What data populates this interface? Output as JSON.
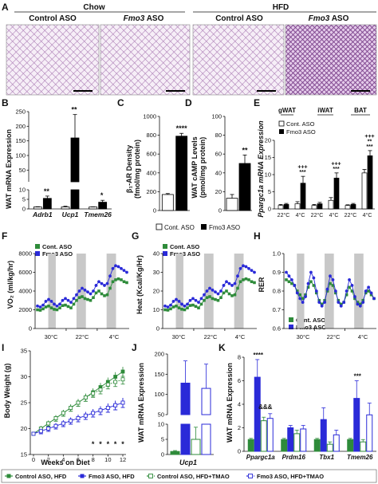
{
  "panels": {
    "A": {
      "letter": "A",
      "diet_groups": [
        "Chow",
        "HFD"
      ],
      "image_labels": [
        {
          "prefix": "Control",
          "suffix": " ASO"
        },
        {
          "prefix": "Fmo3",
          "suffix": " ASO"
        },
        {
          "prefix": "Control",
          "suffix": " ASO"
        },
        {
          "prefix": "Fmo3",
          "suffix": " ASO"
        }
      ]
    },
    "B": {
      "letter": "B",
      "ylabel": "WAT mRNA Expression"
    },
    "C": {
      "letter": "C",
      "ylabel_l1": "β₁-AR Density",
      "ylabel_l2": "(fmol/mg protein)"
    },
    "D": {
      "letter": "D",
      "ylabel_l1": "WAT cAMP Levels",
      "ylabel_l2": "(pmol/mg protein)"
    },
    "CD_legend": [
      "Cont. ASO",
      "Fmo3 ASO"
    ],
    "E": {
      "letter": "E",
      "ylabel": "Ppargc1a mRNA Expression",
      "groups": [
        "gWAT",
        "iWAT",
        "BAT"
      ],
      "legend": [
        "Cont. ASO",
        "Fmo3 ASO"
      ]
    },
    "F": {
      "letter": "F",
      "ylabel": "VO₂ (ml/kg/hr)",
      "legend": [
        "Cont. ASO",
        "Fmo3 ASO"
      ],
      "temps": [
        "30°C",
        "22°C",
        "4°C"
      ]
    },
    "G": {
      "letter": "G",
      "ylabel": "Heat (Kcal/Kg/Hr)",
      "legend": [
        "Cont. ASO",
        "Fmo3 ASO"
      ],
      "temps": [
        "30°C",
        "22°C",
        "4°C"
      ]
    },
    "H": {
      "letter": "H",
      "ylabel": "RER",
      "legend": [
        "Cont. ASO",
        "Fmo3 ASO"
      ],
      "temps": [
        "30°C",
        "22°C",
        "4°C"
      ]
    },
    "I": {
      "letter": "I",
      "ylabel": "Body Weight (g)",
      "xlabel": "Weeks on Diet"
    },
    "J": {
      "letter": "J",
      "ylabel": "WAT mRNA Expression",
      "xlabel": "Ucp1"
    },
    "K": {
      "letter": "K",
      "ylabel": "WAT mRNA Expression"
    },
    "bottom_legend": [
      {
        "label": "Control ASO, HFD",
        "color": "#2e8b3a"
      },
      {
        "label": "Fmo3 ASO, HFD",
        "color": "#2a2ad8"
      },
      {
        "label": "Control ASO, HFD+TMAO",
        "color": "#2e8b3a"
      },
      {
        "label": "Fmo3 ASO, HFD+TMAO",
        "color": "#2a2ad8"
      }
    ]
  },
  "colors": {
    "cont": "#ffffff",
    "fmo3": "#000000",
    "green": "#2e8b3a",
    "blue": "#2a2ad8",
    "shade": "#c8c8c8",
    "tissue": "#b07ab8"
  },
  "chart_data": [
    {
      "id": "B",
      "type": "bar",
      "categories": [
        "Adrb1",
        "Ucp1",
        "Tmem26"
      ],
      "series": [
        {
          "name": "Cont. ASO",
          "values": [
            1,
            1,
            1
          ],
          "errors": [
            0.15,
            0.4,
            0.1
          ]
        },
        {
          "name": "Fmo3 ASO",
          "values": [
            5.5,
            160,
            3.5
          ],
          "errors": [
            1.2,
            80,
            1.0
          ]
        }
      ],
      "significance": [
        "**",
        "**",
        "*"
      ],
      "broken_axis": true,
      "ylim_lower": [
        0,
        10
      ],
      "ylim_upper": [
        10,
        250
      ],
      "ylabel": "WAT mRNA Expression"
    },
    {
      "id": "C",
      "type": "bar",
      "categories": [
        "Cont. ASO",
        "Fmo3 ASO"
      ],
      "values": [
        170,
        790
      ],
      "errors": [
        10,
        30
      ],
      "significance": "****",
      "ylim": [
        0,
        1000
      ],
      "yticks": [
        0,
        200,
        400,
        600,
        800,
        1000
      ],
      "ylabel": "β₁-AR Density (fmol/mg protein)"
    },
    {
      "id": "D",
      "type": "bar",
      "categories": [
        "Cont. ASO",
        "Fmo3 ASO"
      ],
      "values": [
        13,
        50
      ],
      "errors": [
        4,
        9
      ],
      "significance": "**",
      "ylim": [
        0,
        100
      ],
      "yticks": [
        0,
        20,
        40,
        60,
        80,
        100
      ],
      "ylabel": "WAT cAMP Levels (pmol/mg protein)"
    },
    {
      "id": "E",
      "type": "bar",
      "categories": [
        "22°C",
        "4°C",
        "22°C",
        "4°C",
        "22°C",
        "4°C"
      ],
      "tissues": [
        "gWAT",
        "iWAT",
        "BAT"
      ],
      "series": [
        {
          "name": "Cont. ASO",
          "values": [
            1,
            1.5,
            1,
            2.5,
            1,
            10.5
          ],
          "errors": [
            0.3,
            0.6,
            0.3,
            0.8,
            0.2,
            1.0
          ]
        },
        {
          "name": "Fmo3 ASO",
          "values": [
            1.3,
            7.5,
            1.5,
            9,
            1.3,
            15.5
          ],
          "errors": [
            0.3,
            2.0,
            0.4,
            1.5,
            0.3,
            1.5
          ]
        }
      ],
      "significance": [
        "",
        "+++\n***",
        "",
        "+++\n***",
        "",
        "+++\n**\n***"
      ],
      "ylim": [
        0,
        20
      ],
      "yticks": [
        0,
        5,
        10,
        15,
        20
      ],
      "ylabel": "Ppargc1a mRNA Expression"
    },
    {
      "id": "F",
      "type": "line",
      "ylabel": "VO₂ (ml/kg/hr)",
      "ylim": [
        0,
        8000
      ],
      "yticks": [
        0,
        2000,
        4000,
        6000,
        8000
      ],
      "phases": [
        "30°C",
        "22°C",
        "4°C"
      ],
      "series": [
        {
          "name": "Cont. ASO",
          "values": [
            2000,
            1950,
            2100,
            2300,
            2400,
            2200,
            2050,
            2000,
            2200,
            2450,
            2500,
            2350,
            2200,
            2600,
            3000,
            3300,
            3400,
            3200,
            3100,
            3000,
            3300,
            3800,
            4000,
            3700,
            3500,
            3600,
            4300,
            5000,
            5200,
            5300,
            5200,
            5000,
            4900
          ]
        },
        {
          "name": "Fmo3 ASO",
          "values": [
            2400,
            2300,
            2500,
            2900,
            3100,
            2900,
            2600,
            2400,
            2600,
            3000,
            3200,
            3000,
            2800,
            3200,
            3600,
            4000,
            4300,
            4100,
            3900,
            3700,
            4000,
            4600,
            5000,
            4800,
            4600,
            4800,
            5600,
            6400,
            6700,
            6600,
            6400,
            6200,
            6000
          ]
        }
      ]
    },
    {
      "id": "G",
      "type": "line",
      "ylabel": "Heat (Kcal/Kg/Hr)",
      "ylim": [
        0,
        40
      ],
      "yticks": [
        0,
        10,
        20,
        30,
        40
      ],
      "phases": [
        "30°C",
        "22°C",
        "4°C"
      ],
      "series": [
        {
          "name": "Cont. ASO",
          "values": [
            10,
            9.8,
            10.5,
            11.5,
            12,
            11,
            10.3,
            10,
            11,
            12.3,
            12.5,
            11.8,
            11,
            13,
            15,
            16.5,
            17,
            16,
            15.5,
            15,
            16.5,
            19,
            20,
            18.5,
            17.5,
            18,
            21.5,
            25,
            26,
            26.5,
            26,
            25,
            24.5
          ]
        },
        {
          "name": "Fmo3 ASO",
          "values": [
            12,
            11.5,
            12.5,
            14.5,
            15.5,
            14.5,
            13,
            12,
            13,
            15,
            16,
            15,
            14,
            16,
            18,
            20,
            21.5,
            20.5,
            19.5,
            18.5,
            20,
            23,
            25,
            24,
            23,
            24,
            28,
            32,
            33.5,
            33,
            32,
            31,
            30
          ]
        }
      ]
    },
    {
      "id": "H",
      "type": "line",
      "ylabel": "RER",
      "ylim": [
        0.6,
        1.0
      ],
      "yticks": [
        0.6,
        0.7,
        0.8,
        0.9,
        1.0
      ],
      "phases": [
        "30°C",
        "22°C",
        "4°C"
      ],
      "series": [
        {
          "name": "Cont. ASO",
          "values": [
            0.86,
            0.85,
            0.84,
            0.83,
            0.8,
            0.78,
            0.76,
            0.78,
            0.82,
            0.85,
            0.83,
            0.79,
            0.75,
            0.73,
            0.75,
            0.8,
            0.84,
            0.83,
            0.79,
            0.75,
            0.73,
            0.74,
            0.78,
            0.82,
            0.8,
            0.76,
            0.74,
            0.73,
            0.75,
            0.79,
            0.8,
            0.78,
            0.76
          ]
        },
        {
          "name": "Fmo3 ASO",
          "values": [
            0.9,
            0.88,
            0.86,
            0.83,
            0.79,
            0.76,
            0.74,
            0.77,
            0.84,
            0.9,
            0.87,
            0.8,
            0.74,
            0.72,
            0.74,
            0.81,
            0.88,
            0.86,
            0.8,
            0.74,
            0.72,
            0.74,
            0.8,
            0.86,
            0.83,
            0.77,
            0.73,
            0.72,
            0.74,
            0.8,
            0.82,
            0.79,
            0.76
          ]
        }
      ]
    },
    {
      "id": "I",
      "type": "line",
      "xlabel": "Weeks on Diet",
      "ylabel": "Body Weight (g)",
      "x": [
        0,
        1,
        2,
        3,
        4,
        5,
        6,
        7,
        8,
        9,
        10,
        11,
        12
      ],
      "xticks": [
        0,
        2,
        4,
        6,
        8,
        10,
        12
      ],
      "ylim": [
        15,
        35
      ],
      "yticks": [
        15,
        20,
        25,
        30,
        35
      ],
      "series": [
        {
          "name": "Control ASO, HFD",
          "values": [
            19,
            20,
            21,
            22,
            23,
            24,
            25,
            26,
            27,
            28,
            29,
            30,
            31
          ]
        },
        {
          "name": "Fmo3 ASO, HFD",
          "values": [
            19,
            19.5,
            20,
            20.5,
            21,
            21.5,
            22,
            22.5,
            23,
            23.5,
            24,
            24.5,
            25
          ]
        },
        {
          "name": "Control ASO, HFD+TMAO",
          "values": [
            19,
            20,
            21,
            22,
            23,
            24,
            25,
            26,
            26.8,
            27.5,
            28.5,
            29,
            29.5
          ]
        },
        {
          "name": "Fmo3 ASO, HFD+TMAO",
          "values": [
            19,
            19.5,
            20,
            20.5,
            21,
            21.5,
            22,
            22.5,
            23,
            23.5,
            24,
            24.5,
            25
          ]
        }
      ],
      "significance": [
        "",
        "",
        "",
        "",
        "",
        "",
        "",
        "",
        "*",
        "*",
        "*",
        "*",
        "*"
      ]
    },
    {
      "id": "J",
      "type": "bar",
      "categories": [
        "Ucp1"
      ],
      "series": [
        {
          "name": "Control ASO, HFD",
          "values": [
            1
          ],
          "errors": [
            0.3
          ]
        },
        {
          "name": "Fmo3 ASO, HFD",
          "values": [
            128
          ],
          "errors": [
            55
          ]
        },
        {
          "name": "Control ASO, HFD+TMAO",
          "values": [
            5
          ],
          "errors": [
            4
          ]
        },
        {
          "name": "Fmo3 ASO, HFD+TMAO",
          "values": [
            115
          ],
          "errors": [
            60
          ]
        }
      ],
      "broken_axis": true,
      "ylim_lower": [
        0,
        10
      ],
      "ylim_upper": [
        50,
        200
      ],
      "ylabel": "WAT mRNA Expression",
      "xlabel": "Ucp1"
    },
    {
      "id": "K",
      "type": "bar",
      "categories": [
        "Ppargc1a",
        "Prdm16",
        "Tbx1",
        "Tmem26"
      ],
      "series": [
        {
          "name": "Control ASO, HFD",
          "values": [
            1,
            1,
            1,
            1
          ],
          "errors": [
            0.1,
            0.1,
            0.1,
            0.1
          ]
        },
        {
          "name": "Fmo3 ASO, HFD",
          "values": [
            6.3,
            2,
            2.7,
            4.5
          ],
          "errors": [
            1.5,
            0.2,
            1.0,
            1.5
          ]
        },
        {
          "name": "Control ASO, HFD+TMAO",
          "values": [
            2.6,
            1.5,
            0.6,
            0.8
          ],
          "errors": [
            0.3,
            0.3,
            0.2,
            0.2
          ]
        },
        {
          "name": "Fmo3 ASO, HFD+TMAO",
          "values": [
            2.8,
            1.9,
            1.4,
            3.1
          ],
          "errors": [
            0.4,
            0.3,
            0.4,
            1.0
          ]
        }
      ],
      "significance": [
        "****",
        "",
        "",
        "***"
      ],
      "significance2": [
        "&&&",
        "",
        "",
        ""
      ],
      "ylim": [
        0,
        8
      ],
      "yticks": [
        0,
        2,
        4,
        6,
        8
      ],
      "ylabel": "WAT mRNA Expression"
    }
  ]
}
